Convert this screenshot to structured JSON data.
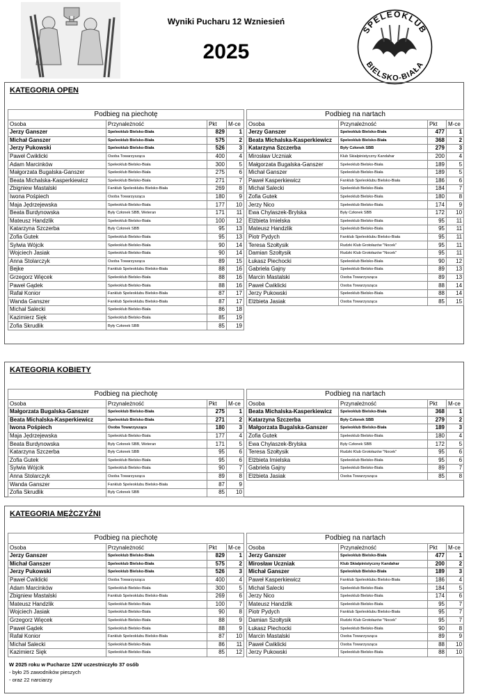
{
  "header": {
    "title": "Wyniki Pucharu 12 Wzniesień",
    "year": "2025",
    "logo": {
      "top": "SPELEOKLUB",
      "bottom": "BIELSKO-BIAŁA"
    }
  },
  "categories": [
    {
      "title": "KATEGORIA OPEN",
      "tables": [
        {
          "title": "Podbieg na piechotę",
          "columns": [
            "Osoba",
            "Przynależność",
            "Pkt",
            "M-ce"
          ],
          "rows": [
            [
              "Jerzy Ganszer",
              "Speleoklub Bielsko-Biała",
              829,
              1
            ],
            [
              "Michał Ganszer",
              "Speleoklub Bielsko-Biała",
              575,
              2
            ],
            [
              "Jerzy Pukowski",
              "Speleoklub Bielsko-Biała",
              526,
              3
            ],
            [
              "Paweł Ćwiklicki",
              "Osoba Towarzysząca",
              400,
              4
            ],
            [
              "Adam Marcinków",
              "Speleoklub Bielsko-Biała",
              300,
              5
            ],
            [
              "Małgorzata Bugalska-Ganszer",
              "Speleoklub Bielsko-Biała",
              275,
              6
            ],
            [
              "Beata Michalska-Kasperkiewicz",
              "Speleoklub Bielsko-Biała",
              271,
              7
            ],
            [
              "Zbigniew Mastalski",
              "Fanklub Speleoklubu Bielsko-Biała",
              269,
              8
            ],
            [
              "Iwona Pośpiech",
              "Osoba Towarzysząca",
              180,
              9
            ],
            [
              "Maja Jędrzejewska",
              "Speleoklub Bielsko-Biała",
              177,
              10
            ],
            [
              "Beata Burdynowska",
              "Były Członek SBB, Weteran",
              171,
              11
            ],
            [
              "Mateusz Handzlik",
              "Speleoklub Bielsko-Biała",
              100,
              12
            ],
            [
              "Katarzyna Szczerba",
              "Były Członek SBB",
              95,
              13
            ],
            [
              "Zofia Gutek",
              "Speleoklub Bielsko-Biała",
              95,
              13
            ],
            [
              "Sylwia Wójcik",
              "Speleoklub Bielsko-Biała",
              90,
              14
            ],
            [
              "Wojciech Jasiak",
              "Speleoklub Bielsko-Biała",
              90,
              14
            ],
            [
              "Anna Stolarczyk",
              "Osoba Towarzysząca",
              89,
              15
            ],
            [
              "Bejke",
              "Fanklub Speleoklubu Bielsko-Biała",
              88,
              16
            ],
            [
              "Grzegorz Więcek",
              "Speleoklub Bielsko-Biała",
              88,
              16
            ],
            [
              "Paweł Gądek",
              "Speleoklub Bielsko-Biała",
              88,
              16
            ],
            [
              "Rafał Konior",
              "Fanklub Speleoklubu Bielsko-Biała",
              87,
              17
            ],
            [
              "Wanda Ganszer",
              "Fanklub Speleoklubu Bielsko-Biała",
              87,
              17
            ],
            [
              "Michał Salecki",
              "Speleoklub Bielsko-Biała",
              86,
              18
            ],
            [
              "Kazimierz Sięk",
              "Speleoklub Bielsko-Biała",
              85,
              19
            ],
            [
              "Zofia Skrudlik",
              "Były Członek SBB",
              85,
              19
            ]
          ]
        },
        {
          "title": "Podbieg na nartach",
          "columns": [
            "Osoba",
            "Przynależność",
            "Pkt",
            "M-ce"
          ],
          "rows": [
            [
              "Jerzy Ganszer",
              "Speleoklub Bielsko-Biała",
              477,
              1
            ],
            [
              "Beata Michalska-Kasperkiewicz",
              "Speleoklub Bielsko-Biała",
              368,
              2
            ],
            [
              "Katarzyna Szczerba",
              "Były Członek SBB",
              279,
              3
            ],
            [
              "Mirosław Uczniak",
              "Klub Skialpinistyczny Kandahar",
              200,
              4
            ],
            [
              "Małgorzata Bugalska-Ganszer",
              "Speleoklub Bielsko-Biała",
              189,
              5
            ],
            [
              "Michał Ganszer",
              "Speleoklub Bielsko-Biała",
              189,
              5
            ],
            [
              "Paweł Kasperkiewicz",
              "Fanklub Speleoklubu Bielsko-Biała",
              186,
              6
            ],
            [
              "Michał Salecki",
              "Speleoklub Bielsko-Biała",
              184,
              7
            ],
            [
              "Zofia Gutek",
              "Speleoklub Bielsko-Biała",
              180,
              8
            ],
            [
              "Jerzy Nico",
              "Speleoklub Bielsko-Biała",
              174,
              9
            ],
            [
              "Ewa Chylaszek-Brylska",
              "Były Członek SBB",
              172,
              10
            ],
            [
              "Elżbieta Imielska",
              "Speleoklub Bielsko-Biała",
              95,
              11
            ],
            [
              "Mateusz Handzlik",
              "Speleoklub Bielsko-Biała",
              95,
              11
            ],
            [
              "Piotr Pydych",
              "Fanklub Speleoklubu Bielsko-Biała",
              95,
              11
            ],
            [
              "Teresa Szołtysik",
              "Rudzki Klub Grotołazów \"Nocek\"",
              95,
              11
            ],
            [
              "Damian Szołtysik",
              "Rudzki Klub Grotołazów \"Nocek\"",
              95,
              11
            ],
            [
              "Łukasz Piechocki",
              "Speleoklub Bielsko-Biała",
              90,
              12
            ],
            [
              "Gabriela Gajny",
              "Speleoklub Bielsko-Biała",
              89,
              13
            ],
            [
              "Marcin Mastalski",
              "Osoba Towarzysząca",
              89,
              13
            ],
            [
              "Paweł Ćwiklicki",
              "Osoba Towarzysząca",
              88,
              14
            ],
            [
              "Jerzy Pukowski",
              "Speleoklub Bielsko-Biała",
              88,
              14
            ],
            [
              "Elżbieta Jasiak",
              "Osoba Towarzysząca",
              85,
              15
            ]
          ]
        }
      ]
    },
    {
      "title": "KATEGORIA KOBIETY",
      "tables": [
        {
          "title": "Podbieg na piechotę",
          "columns": [
            "Osoba",
            "Przynależność",
            "Pkt",
            "M-ce"
          ],
          "rows": [
            [
              "Małgorzata Bugalska-Ganszer",
              "Speleoklub Bielsko-Biała",
              275,
              1
            ],
            [
              "Beata Michalska-Kasperkiewicz",
              "Speleoklub Bielsko-Biała",
              271,
              2
            ],
            [
              "Iwona Pośpiech",
              "Osoba Towarzysząca",
              180,
              3
            ],
            [
              "Maja Jędrzejewska",
              "Speleoklub Bielsko-Biała",
              177,
              4
            ],
            [
              "Beata Burdynowska",
              "Były Członek SBB, Weteran",
              171,
              5
            ],
            [
              "Katarzyna Szczerba",
              "Były Członek SBB",
              95,
              6
            ],
            [
              "Zofia Gutek",
              "Speleoklub Bielsko-Biała",
              95,
              6
            ],
            [
              "Sylwia Wójcik",
              "Speleoklub Bielsko-Biała",
              90,
              7
            ],
            [
              "Anna Stolarczyk",
              "Osoba Towarzysząca",
              89,
              8
            ],
            [
              "Wanda Ganszer",
              "Fanklub Speleoklubu Bielsko-Biała",
              87,
              9
            ],
            [
              "Zofia Skrudlik",
              "Były Członek SBB",
              85,
              10
            ]
          ]
        },
        {
          "title": "Podbieg na nartach",
          "columns": [
            "Osoba",
            "Przynależność",
            "Pkt",
            "M-ce"
          ],
          "rows": [
            [
              "Beata Michalska-Kasperkiewicz",
              "Speleoklub Bielsko-Biała",
              368,
              1
            ],
            [
              "Katarzyna Szczerba",
              "Były Członek SBB",
              279,
              2
            ],
            [
              "Małgorzata Bugalska-Ganszer",
              "Speleoklub Bielsko-Biała",
              189,
              3
            ],
            [
              "Zofia Gutek",
              "Speleoklub Bielsko-Biała",
              180,
              4
            ],
            [
              "Ewa Chylaszek-Brylska",
              "Były Członek SBB",
              172,
              5
            ],
            [
              "Teresa Szołtysik",
              "Rudzki Klub Grotołazów \"Nocek\"",
              95,
              6
            ],
            [
              "Elżbieta Imielska",
              "Speleoklub Bielsko-Biała",
              95,
              6
            ],
            [
              "Gabriela Gajny",
              "Speleoklub Bielsko-Biała",
              89,
              7
            ],
            [
              "Elżbieta Jasiak",
              "Osoba Towarzysząca",
              85,
              8
            ]
          ]
        }
      ]
    },
    {
      "title": "KATEGORIA MĘŻCZYŹNI",
      "tables": [
        {
          "title": "Podbieg na piechotę",
          "columns": [
            "Osoba",
            "Przynależność",
            "Pkt",
            "M-ce"
          ],
          "rows": [
            [
              "Jerzy Ganszer",
              "Speleoklub Bielsko-Biała",
              829,
              1
            ],
            [
              "Michał Ganszer",
              "Speleoklub Bielsko-Biała",
              575,
              2
            ],
            [
              "Jerzy Pukowski",
              "Speleoklub Bielsko-Biała",
              526,
              3
            ],
            [
              "Paweł Ćwiklicki",
              "Osoba Towarzysząca",
              400,
              4
            ],
            [
              "Adam Marcinków",
              "Speleoklub Bielsko-Biała",
              300,
              5
            ],
            [
              "Zbigniew Mastalski",
              "Fanklub Speleoklubu Bielsko-Biała",
              269,
              6
            ],
            [
              "Mateusz Handzlik",
              "Speleoklub Bielsko-Biała",
              100,
              7
            ],
            [
              "Wojciech Jasiak",
              "Speleoklub Bielsko-Biała",
              90,
              8
            ],
            [
              "Grzegorz Więcek",
              "Speleoklub Bielsko-Biała",
              88,
              9
            ],
            [
              "Paweł Gądek",
              "Speleoklub Bielsko-Biała",
              88,
              9
            ],
            [
              "Rafał Konior",
              "Fanklub Speleoklubu Bielsko-Biała",
              87,
              10
            ],
            [
              "Michał Salecki",
              "Speleoklub Bielsko-Biała",
              86,
              11
            ],
            [
              "Kazimierz Sięk",
              "Speleoklub Bielsko-Biała",
              85,
              12
            ]
          ]
        },
        {
          "title": "Podbieg na nartach",
          "columns": [
            "Osoba",
            "Przynależność",
            "Pkt",
            "M-ce"
          ],
          "rows": [
            [
              "Jerzy Ganszer",
              "Speleoklub Bielsko-Biała",
              477,
              1
            ],
            [
              "Mirosław Uczniak",
              "Klub Skialpinistyczny Kandahar",
              200,
              2
            ],
            [
              "Michał Ganszer",
              "Speleoklub Bielsko-Biała",
              189,
              3
            ],
            [
              "Paweł Kasperkiewicz",
              "Fanklub Speleoklubu Bielsko-Biała",
              186,
              4
            ],
            [
              "Michał Salecki",
              "Speleoklub Bielsko-Biała",
              184,
              5
            ],
            [
              "Jerzy Nico",
              "Speleoklub Bielsko-Biała",
              174,
              6
            ],
            [
              "Mateusz Handzlik",
              "Speleoklub Bielsko-Biała",
              95,
              7
            ],
            [
              "Piotr Pydych",
              "Fanklub Speleoklubu Bielsko-Biała",
              95,
              7
            ],
            [
              "Damian Szołtysik",
              "Rudzki Klub Grotołazów \"Nocek\"",
              95,
              7
            ],
            [
              "Łukasz Piechocki",
              "Speleoklub Bielsko-Biała",
              90,
              8
            ],
            [
              "Marcin Mastalski",
              "Osoba Towarzysząca",
              89,
              9
            ],
            [
              "Paweł Ćwiklicki",
              "Osoba Towarzysząca",
              88,
              10
            ],
            [
              "Jerzy Pukowski",
              "Speleoklub Bielsko-Biała",
              88,
              10
            ]
          ]
        }
      ]
    }
  ],
  "footer": [
    "W 2025 roku w Pucharze 12W uczestniczyło 37 osób",
    "- było 25 zawodników pieszych",
    "- oraz 22 narciarzy"
  ]
}
